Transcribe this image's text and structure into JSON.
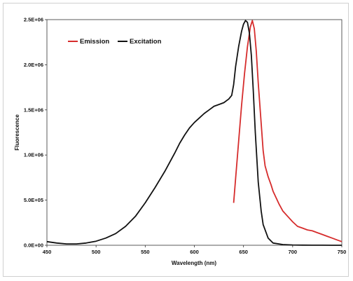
{
  "chart_data": {
    "type": "line",
    "title": "",
    "xlabel": "Wavelength (nm)",
    "ylabel": "Fluorescence",
    "xlim": [
      450,
      750
    ],
    "ylim": [
      0,
      2500000
    ],
    "x_ticks": [
      450,
      500,
      550,
      600,
      650,
      700,
      750
    ],
    "y_ticks": [
      0,
      500000,
      1000000,
      1500000,
      2000000,
      2500000
    ],
    "x_tick_labels": [
      "450",
      "500",
      "550",
      "600",
      "650",
      "700",
      "750"
    ],
    "y_tick_labels": [
      "0.0E+00",
      "5.0E+05",
      "1.0E+06",
      "1.5E+06",
      "2.0E+06",
      "2.5E+06"
    ],
    "grid": false,
    "legend_position": "top-left",
    "series": [
      {
        "name": "Emission",
        "color": "#d62c2c",
        "x": [
          640,
          642,
          645,
          648,
          651,
          654,
          657,
          659,
          661,
          663,
          665,
          668,
          670,
          672,
          675,
          678,
          680,
          683,
          686,
          690,
          695,
          700,
          705,
          710,
          715,
          720,
          725,
          730,
          735,
          740,
          745,
          750
        ],
        "y": [
          470000,
          740000,
          1150000,
          1550000,
          1900000,
          2200000,
          2420000,
          2490000,
          2400000,
          2150000,
          1800000,
          1350000,
          1050000,
          880000,
          760000,
          670000,
          600000,
          530000,
          460000,
          380000,
          320000,
          260000,
          210000,
          190000,
          170000,
          160000,
          140000,
          120000,
          100000,
          80000,
          60000,
          40000
        ]
      },
      {
        "name": "Excitation",
        "color": "#111111",
        "x": [
          450,
          460,
          470,
          480,
          490,
          500,
          510,
          520,
          530,
          540,
          550,
          560,
          570,
          580,
          585,
          590,
          595,
          600,
          605,
          610,
          615,
          620,
          625,
          630,
          635,
          638,
          640,
          642,
          645,
          648,
          650,
          652,
          654,
          656,
          658,
          660,
          662,
          665,
          668,
          670,
          675,
          680,
          690,
          700,
          710,
          720,
          730,
          740,
          750
        ],
        "y": [
          40000,
          25000,
          15000,
          15000,
          25000,
          45000,
          80000,
          130000,
          210000,
          320000,
          470000,
          640000,
          820000,
          1020000,
          1130000,
          1220000,
          1300000,
          1360000,
          1410000,
          1460000,
          1500000,
          1540000,
          1560000,
          1580000,
          1620000,
          1660000,
          1780000,
          1980000,
          2200000,
          2370000,
          2450000,
          2490000,
          2470000,
          2350000,
          2100000,
          1700000,
          1250000,
          700000,
          380000,
          230000,
          80000,
          25000,
          8000,
          3000,
          1500,
          800,
          400,
          200,
          100
        ]
      }
    ]
  }
}
